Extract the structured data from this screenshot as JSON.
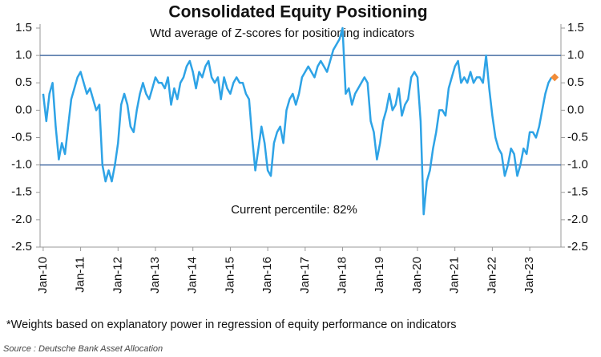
{
  "chart_data": {
    "type": "line",
    "title": "Consolidated Equity Positioning",
    "subtitle": "Wtd average of Z-scores for positioning indicators",
    "annotation": "Current percentile: 82%",
    "footnote": "*Weights based on explanatory power in regression of equity performance on indicators",
    "source": "Source : Deutsche Bank Asset Allocation",
    "color": "#2ea3e6",
    "x": [
      "2010-01",
      "2010-02",
      "2010-03",
      "2010-04",
      "2010-05",
      "2010-06",
      "2010-07",
      "2010-08",
      "2010-09",
      "2010-10",
      "2010-11",
      "2010-12",
      "2011-01",
      "2011-02",
      "2011-03",
      "2011-04",
      "2011-05",
      "2011-06",
      "2011-07",
      "2011-08",
      "2011-09",
      "2011-10",
      "2011-11",
      "2011-12",
      "2012-01",
      "2012-02",
      "2012-03",
      "2012-04",
      "2012-05",
      "2012-06",
      "2012-07",
      "2012-08",
      "2012-09",
      "2012-10",
      "2012-11",
      "2012-12",
      "2013-01",
      "2013-02",
      "2013-03",
      "2013-04",
      "2013-05",
      "2013-06",
      "2013-07",
      "2013-08",
      "2013-09",
      "2013-10",
      "2013-11",
      "2013-12",
      "2014-01",
      "2014-02",
      "2014-03",
      "2014-04",
      "2014-05",
      "2014-06",
      "2014-07",
      "2014-08",
      "2014-09",
      "2014-10",
      "2014-11",
      "2014-12",
      "2015-01",
      "2015-02",
      "2015-03",
      "2015-04",
      "2015-05",
      "2015-06",
      "2015-07",
      "2015-08",
      "2015-09",
      "2015-10",
      "2015-11",
      "2015-12",
      "2016-01",
      "2016-02",
      "2016-03",
      "2016-04",
      "2016-05",
      "2016-06",
      "2016-07",
      "2016-08",
      "2016-09",
      "2016-10",
      "2016-11",
      "2016-12",
      "2017-01",
      "2017-02",
      "2017-03",
      "2017-04",
      "2017-05",
      "2017-06",
      "2017-07",
      "2017-08",
      "2017-09",
      "2017-10",
      "2017-11",
      "2017-12",
      "2018-01",
      "2018-02",
      "2018-03",
      "2018-04",
      "2018-05",
      "2018-06",
      "2018-07",
      "2018-08",
      "2018-09",
      "2018-10",
      "2018-11",
      "2018-12",
      "2019-01",
      "2019-02",
      "2019-03",
      "2019-04",
      "2019-05",
      "2019-06",
      "2019-07",
      "2019-08",
      "2019-09",
      "2019-10",
      "2019-11",
      "2019-12",
      "2020-01",
      "2020-02",
      "2020-03",
      "2020-04",
      "2020-05",
      "2020-06",
      "2020-07",
      "2020-08",
      "2020-09",
      "2020-10",
      "2020-11",
      "2020-12",
      "2021-01",
      "2021-02",
      "2021-03",
      "2021-04",
      "2021-05",
      "2021-06",
      "2021-07",
      "2021-08",
      "2021-09",
      "2021-10",
      "2021-11",
      "2021-12",
      "2022-01",
      "2022-02",
      "2022-03",
      "2022-04",
      "2022-05",
      "2022-06",
      "2022-07",
      "2022-08",
      "2022-09",
      "2022-10",
      "2022-11",
      "2022-12",
      "2023-01",
      "2023-02",
      "2023-03",
      "2023-04",
      "2023-05",
      "2023-06",
      "2023-07",
      "2023-08"
    ],
    "values": [
      0.3,
      -0.2,
      0.3,
      0.5,
      -0.3,
      -0.9,
      -0.6,
      -0.8,
      -0.3,
      0.2,
      0.4,
      0.6,
      0.7,
      0.5,
      0.3,
      0.4,
      0.2,
      0.0,
      0.1,
      -1.0,
      -1.3,
      -1.1,
      -1.3,
      -1.0,
      -0.6,
      0.1,
      0.3,
      0.1,
      -0.3,
      -0.4,
      0.0,
      0.3,
      0.5,
      0.3,
      0.2,
      0.4,
      0.6,
      0.5,
      0.5,
      0.4,
      0.6,
      0.1,
      0.4,
      0.2,
      0.5,
      0.6,
      0.8,
      0.9,
      0.7,
      0.4,
      0.7,
      0.6,
      0.8,
      0.9,
      0.6,
      0.5,
      0.6,
      0.2,
      0.6,
      0.4,
      0.3,
      0.5,
      0.6,
      0.5,
      0.5,
      0.3,
      0.2,
      -0.5,
      -1.1,
      -0.7,
      -0.3,
      -0.6,
      -1.1,
      -1.2,
      -0.6,
      -0.4,
      -0.3,
      -0.6,
      0.0,
      0.2,
      0.3,
      0.1,
      0.3,
      0.6,
      0.7,
      0.8,
      0.7,
      0.6,
      0.8,
      0.9,
      0.8,
      0.7,
      0.9,
      1.1,
      1.2,
      1.3,
      1.5,
      0.3,
      0.4,
      0.1,
      0.3,
      0.4,
      0.5,
      0.6,
      0.5,
      -0.2,
      -0.4,
      -0.9,
      -0.6,
      -0.2,
      0.0,
      0.3,
      0.0,
      0.1,
      0.4,
      -0.1,
      0.1,
      0.2,
      0.6,
      0.7,
      0.6,
      -0.2,
      -1.9,
      -1.3,
      -1.1,
      -0.7,
      -0.4,
      0.0,
      0.0,
      -0.1,
      0.4,
      0.6,
      0.8,
      0.9,
      0.5,
      0.6,
      0.5,
      0.7,
      0.5,
      0.6,
      0.6,
      0.5,
      1.0,
      0.4,
      -0.1,
      -0.5,
      -0.7,
      -0.8,
      -1.2,
      -1.0,
      -0.7,
      -0.8,
      -1.2,
      -1.0,
      -0.7,
      -0.8,
      -0.4,
      -0.4,
      -0.5,
      -0.3,
      0.0,
      0.3,
      0.5,
      0.6
    ],
    "current": {
      "x": "2023-09",
      "value": 0.6,
      "color": "#f28c38"
    },
    "hlines": [
      1,
      -1
    ],
    "hline_color": "#4a6fa5",
    "xlim": [
      "2009-12",
      "2023-11"
    ],
    "xticks": [
      {
        "value": "2010-01",
        "label": "Jan-10"
      },
      {
        "value": "2011-01",
        "label": "Jan-11"
      },
      {
        "value": "2012-01",
        "label": "Jan-12"
      },
      {
        "value": "2013-01",
        "label": "Jan-13"
      },
      {
        "value": "2014-01",
        "label": "Jan-14"
      },
      {
        "value": "2015-01",
        "label": "Jan-15"
      },
      {
        "value": "2016-01",
        "label": "Jan-16"
      },
      {
        "value": "2017-01",
        "label": "Jan-17"
      },
      {
        "value": "2018-01",
        "label": "Jan-18"
      },
      {
        "value": "2019-01",
        "label": "Jan-19"
      },
      {
        "value": "2020-01",
        "label": "Jan-20"
      },
      {
        "value": "2021-01",
        "label": "Jan-21"
      },
      {
        "value": "2022-01",
        "label": "Jan-22"
      },
      {
        "value": "2023-01",
        "label": "Jan-23"
      }
    ],
    "ylim": [
      -2.5,
      1.5
    ],
    "yticks": [
      1.5,
      {
        "value": 1,
        "label": "1.0"
      },
      0.5,
      {
        "value": 0,
        "label": "0.0"
      },
      -0.5,
      {
        "value": -1,
        "label": "-1.0"
      },
      -1.5,
      {
        "value": -2,
        "label": "-2.0"
      },
      -2.5
    ],
    "y2lim": [
      -2.5,
      1.5
    ],
    "y2ticks": [
      1.5,
      {
        "value": 1,
        "label": "1.0"
      },
      0.5,
      {
        "value": 0,
        "label": "0.0"
      },
      -0.5,
      {
        "value": -1,
        "label": "-1.0"
      },
      -1.5,
      {
        "value": -2,
        "label": "-2.0"
      },
      -2.5
    ]
  }
}
